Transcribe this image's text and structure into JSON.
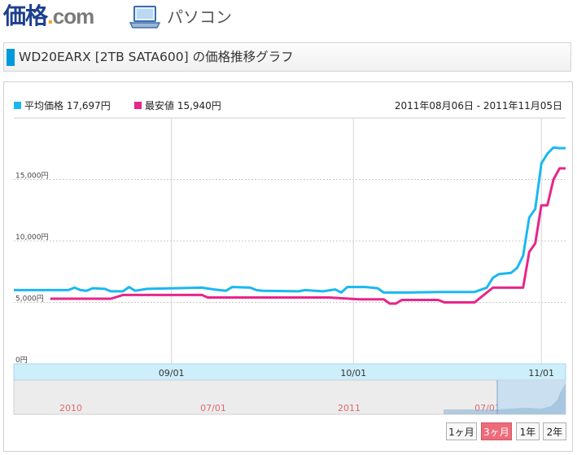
{
  "header": {
    "logo_main": "価格",
    "logo_dot": ".",
    "logo_com": "com",
    "category_label": "パソコン",
    "category_icon": "laptop-icon"
  },
  "title_bar": {
    "text": "WD20EARX [2TB SATA600] の価格推移グラフ"
  },
  "colors": {
    "avg": "#1ab8f0",
    "min": "#e8258a",
    "accent": "#0099dd",
    "active_button": "#ee6b7a"
  },
  "legend": {
    "avg_label": "平均価格 17,697円",
    "min_label": "最安値 15,940円",
    "date_range": "2011年08月06日 - 2011年11月05日"
  },
  "range_buttons": [
    {
      "label": "1ヶ月",
      "active": false
    },
    {
      "label": "3ヶ月",
      "active": true
    },
    {
      "label": "1年",
      "active": false
    },
    {
      "label": "2年",
      "active": false
    }
  ],
  "chart_data": {
    "type": "line",
    "x_domain": [
      "2011-08-06",
      "2011-11-05"
    ],
    "x_ticks": [
      {
        "date": "2011-09-01",
        "label": "09/01"
      },
      {
        "date": "2011-10-01",
        "label": "10/01"
      },
      {
        "date": "2011-11-01",
        "label": "11/01"
      }
    ],
    "ylim": [
      0,
      20000
    ],
    "y_ticks": [
      {
        "value": 0,
        "label": "0円"
      },
      {
        "value": 5000,
        "label": "5,000円"
      },
      {
        "value": 10000,
        "label": "10,000円"
      },
      {
        "value": 15000,
        "label": "15,000円"
      }
    ],
    "grid": true,
    "series": [
      {
        "name": "平均価格",
        "color": "#1ab8f0",
        "points": [
          [
            "2011-08-06",
            6000
          ],
          [
            "2011-08-15",
            6000
          ],
          [
            "2011-08-16",
            6200
          ],
          [
            "2011-08-17",
            6000
          ],
          [
            "2011-08-18",
            5950
          ],
          [
            "2011-08-19",
            6150
          ],
          [
            "2011-08-21",
            6100
          ],
          [
            "2011-08-22",
            5900
          ],
          [
            "2011-08-24",
            5900
          ],
          [
            "2011-08-25",
            6250
          ],
          [
            "2011-08-26",
            5950
          ],
          [
            "2011-08-28",
            6100
          ],
          [
            "2011-09-06",
            6200
          ],
          [
            "2011-09-08",
            6050
          ],
          [
            "2011-09-10",
            5950
          ],
          [
            "2011-09-11",
            6250
          ],
          [
            "2011-09-14",
            6200
          ],
          [
            "2011-09-15",
            6000
          ],
          [
            "2011-09-16",
            5950
          ],
          [
            "2011-09-22",
            5900
          ],
          [
            "2011-09-23",
            6000
          ],
          [
            "2011-09-26",
            5900
          ],
          [
            "2011-09-28",
            6050
          ],
          [
            "2011-09-29",
            5800
          ],
          [
            "2011-09-30",
            6250
          ],
          [
            "2011-10-03",
            6250
          ],
          [
            "2011-10-05",
            6150
          ],
          [
            "2011-10-06",
            5800
          ],
          [
            "2011-10-10",
            5800
          ],
          [
            "2011-10-15",
            5850
          ],
          [
            "2011-10-21",
            5850
          ],
          [
            "2011-10-23",
            6200
          ],
          [
            "2011-10-24",
            7000
          ],
          [
            "2011-10-25",
            7300
          ],
          [
            "2011-10-27",
            7400
          ],
          [
            "2011-10-28",
            7800
          ],
          [
            "2011-10-29",
            8800
          ],
          [
            "2011-10-30",
            11900
          ],
          [
            "2011-10-31",
            12600
          ],
          [
            "2011-11-01",
            16300
          ],
          [
            "2011-11-02",
            17100
          ],
          [
            "2011-11-03",
            17600
          ],
          [
            "2011-11-04",
            17550
          ],
          [
            "2011-11-05",
            17550
          ]
        ]
      },
      {
        "name": "最安値",
        "color": "#e8258a",
        "points": [
          [
            "2011-08-12",
            5300
          ],
          [
            "2011-08-22",
            5300
          ],
          [
            "2011-08-24",
            5600
          ],
          [
            "2011-09-06",
            5600
          ],
          [
            "2011-09-07",
            5400
          ],
          [
            "2011-09-27",
            5400
          ],
          [
            "2011-10-02",
            5250
          ],
          [
            "2011-10-06",
            5250
          ],
          [
            "2011-10-07",
            4900
          ],
          [
            "2011-10-08",
            4900
          ],
          [
            "2011-10-09",
            5200
          ],
          [
            "2011-10-15",
            5200
          ],
          [
            "2011-10-16",
            5000
          ],
          [
            "2011-10-21",
            5000
          ],
          [
            "2011-10-23",
            5800
          ],
          [
            "2011-10-24",
            6200
          ],
          [
            "2011-10-29",
            6200
          ],
          [
            "2011-10-30",
            9100
          ],
          [
            "2011-10-31",
            9800
          ],
          [
            "2011-11-01",
            12900
          ],
          [
            "2011-11-02",
            12900
          ],
          [
            "2011-11-03",
            15000
          ],
          [
            "2011-11-04",
            15900
          ],
          [
            "2011-11-05",
            15900
          ]
        ]
      }
    ],
    "navigator_labels": [
      "2010",
      "07/01",
      "2011",
      "07/01"
    ]
  }
}
